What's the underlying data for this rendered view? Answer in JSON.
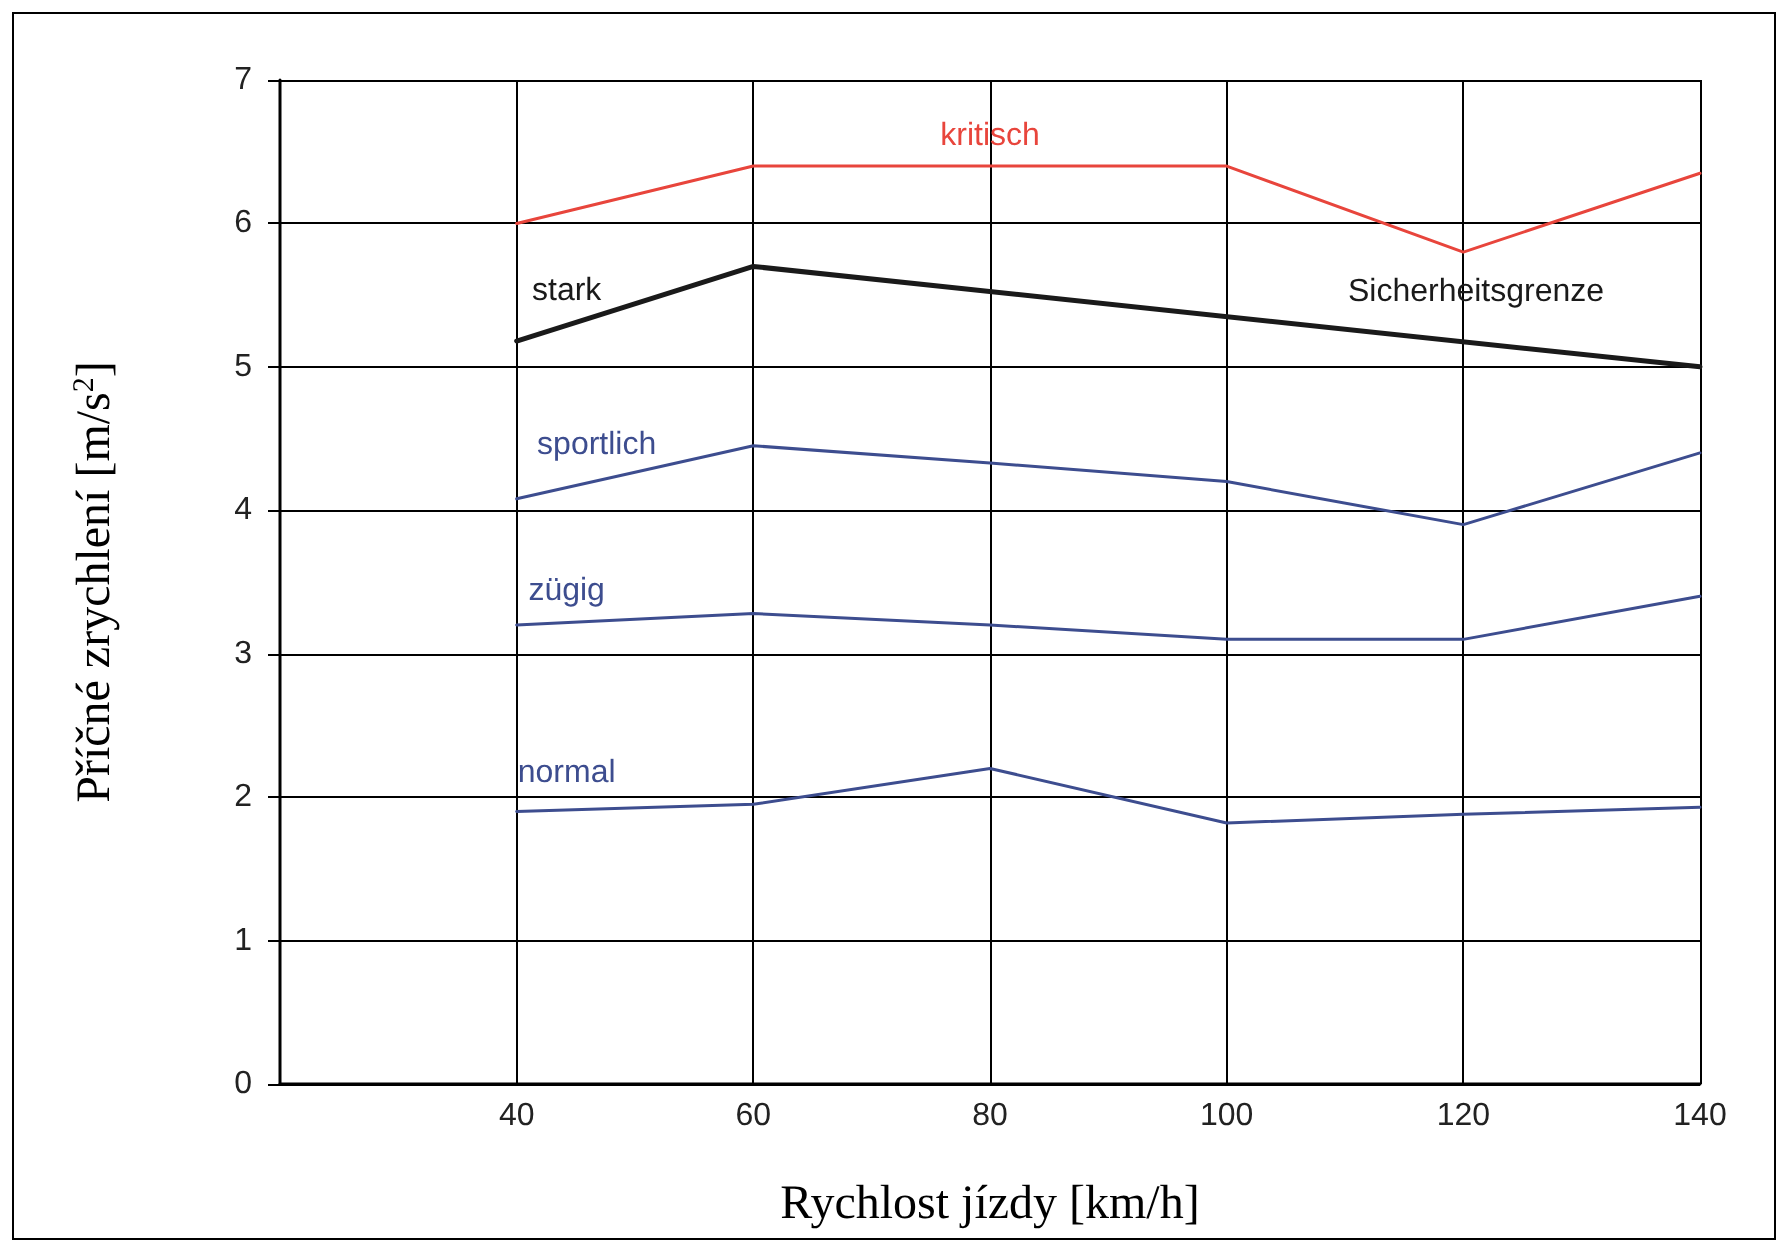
{
  "chart_data": {
    "type": "line",
    "xlabel": "Rychlost jízdy [km/h]",
    "ylabel": "Příčné zrychlení [m/s$^{2}$]",
    "x": [
      40,
      60,
      80,
      100,
      120,
      140
    ],
    "xlim": [
      20,
      140
    ],
    "xticks": [
      40,
      60,
      80,
      100,
      120,
      140
    ],
    "ylim": [
      0,
      7
    ],
    "yticks": [
      0,
      1,
      2,
      3,
      4,
      5,
      6,
      7
    ],
    "grid": true,
    "legend": false,
    "marker": "none",
    "line_style": "solid",
    "annotations": [
      "Sicherheitsgrenze"
    ],
    "series": [
      {
        "name": "kritisch",
        "color": "#e8453c",
        "values": [
          6.0,
          6.4,
          6.4,
          6.4,
          5.8,
          6.35
        ]
      },
      {
        "name": "stark",
        "color": "#1a1a1a",
        "x": [
          40,
          60,
          140
        ],
        "values": [
          5.18,
          5.7,
          5.0
        ]
      },
      {
        "name": "sportlich",
        "color": "#3d4d8f",
        "values": [
          4.08,
          4.45,
          4.33,
          4.2,
          3.9,
          4.4
        ]
      },
      {
        "name": "zügig",
        "color": "#3d4d8f",
        "values": [
          3.2,
          3.28,
          3.2,
          3.1,
          3.1,
          3.4
        ]
      },
      {
        "name": "normal",
        "color": "#3d4d8f",
        "values": [
          1.9,
          1.95,
          2.2,
          1.82,
          1.88,
          1.93
        ]
      }
    ]
  }
}
